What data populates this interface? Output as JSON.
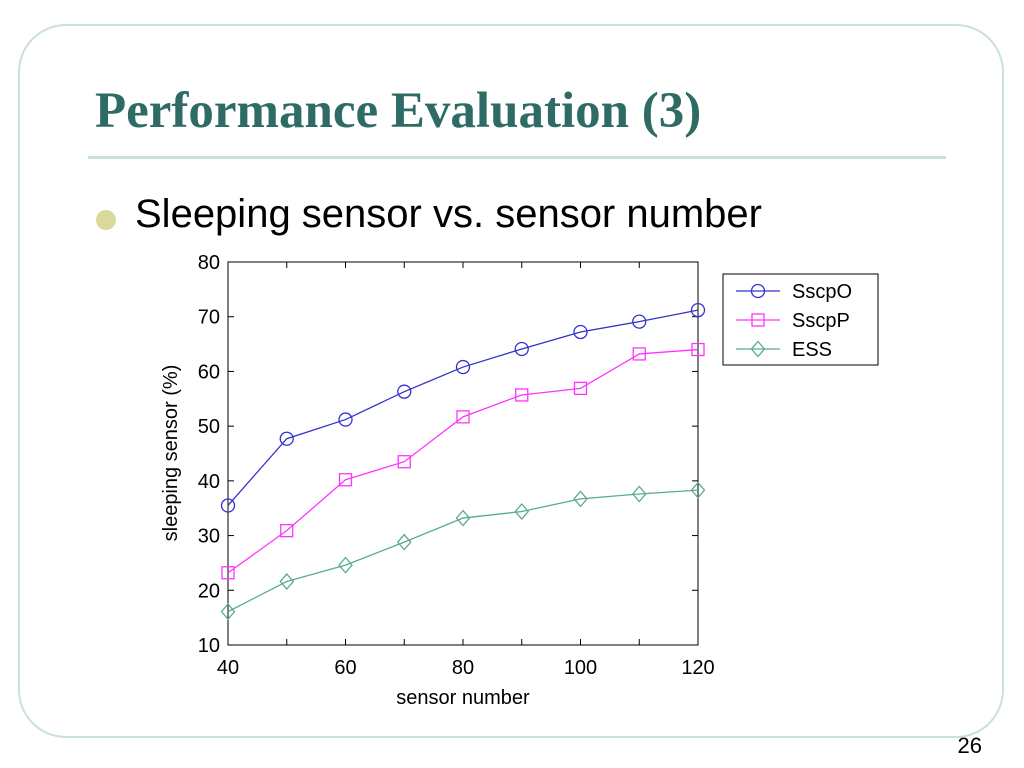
{
  "slide": {
    "title": "Performance Evaluation (3)",
    "bullet": "Sleeping sensor vs. sensor number",
    "page_number": "26",
    "colors": {
      "title": "#2e6b64",
      "frame": "#c9dfe0",
      "bullet": "#d9d99c"
    }
  },
  "chart_data": {
    "type": "line",
    "title": "",
    "xlabel": "sensor number",
    "ylabel": "sleeping sensor (%)",
    "x": [
      40,
      50,
      60,
      70,
      80,
      90,
      100,
      110,
      120
    ],
    "xlim": [
      40,
      120
    ],
    "ylim": [
      10,
      80
    ],
    "xticks": [
      40,
      60,
      80,
      100,
      120
    ],
    "yticks": [
      10,
      20,
      30,
      40,
      50,
      60,
      70,
      80
    ],
    "grid": false,
    "legend_position": "outside-right-top",
    "series": [
      {
        "name": "SscpO",
        "marker": "circle",
        "color": "#3333cc",
        "values": [
          35.5,
          47.7,
          51.2,
          56.3,
          60.8,
          64.1,
          67.2,
          69.1,
          71.2
        ]
      },
      {
        "name": "SscpP",
        "marker": "square",
        "color": "#ff33ff",
        "values": [
          23.2,
          30.9,
          40.2,
          43.5,
          51.7,
          55.7,
          56.9,
          63.2,
          64.0
        ]
      },
      {
        "name": "ESS",
        "marker": "diamond",
        "color": "#5aaa94",
        "values": [
          16.1,
          21.6,
          24.6,
          28.8,
          33.2,
          34.4,
          36.7,
          37.6,
          38.3
        ]
      }
    ]
  }
}
